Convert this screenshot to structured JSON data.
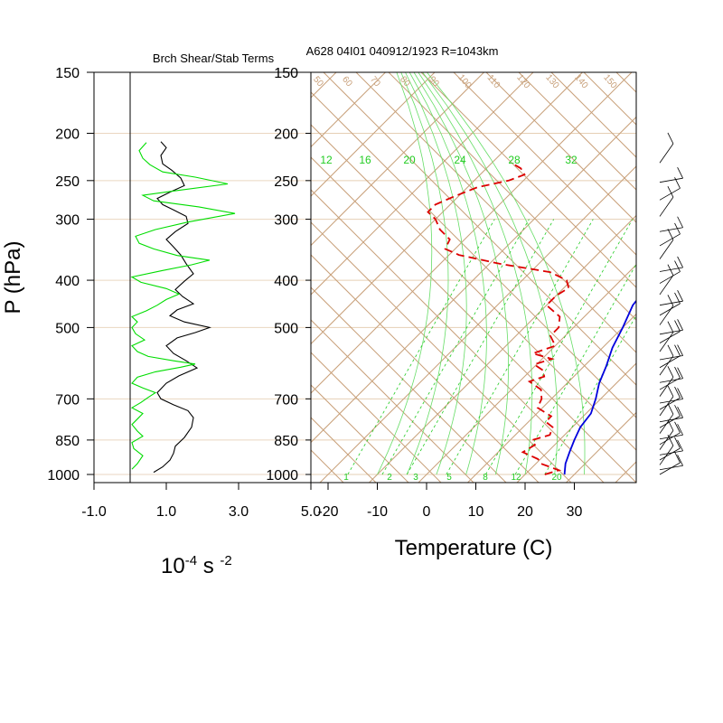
{
  "header": {
    "left_title": "Brch Shear/Stab Terms",
    "right_title": "A628 04I01 040912/1923 R=1043km"
  },
  "chart_data": [
    {
      "type": "line",
      "title": "Brch Shear/Stab Terms",
      "ylabel": "P (hPa)",
      "xlabel": "10-4 s -2",
      "xlabel_parts": {
        "base": "10",
        "exp1": "-4",
        "unit": " s ",
        "exp2": "-2"
      },
      "y_scale": "log",
      "ylim": [
        1000,
        150
      ],
      "xlim": [
        -1.0,
        5.0
      ],
      "x_ticks": [
        "-1.0",
        "1.0",
        "3.0",
        "5.0"
      ],
      "x_tick_values": [
        -1.0,
        1.0,
        3.0,
        5.0
      ],
      "y_ticks": [
        "150",
        "200",
        "250",
        "300",
        "400",
        "500",
        "700",
        "850",
        "1000"
      ],
      "y_tick_values": [
        150,
        200,
        250,
        300,
        400,
        500,
        700,
        850,
        1000
      ],
      "grid": true,
      "zero_line": 0.0,
      "series": [
        {
          "color": "#000000",
          "points": [
            [
              0.65,
              990
            ],
            [
              0.9,
              965
            ],
            [
              1.1,
              935
            ],
            [
              1.2,
              905
            ],
            [
              1.25,
              875
            ],
            [
              1.5,
              840
            ],
            [
              1.7,
              800
            ],
            [
              1.75,
              765
            ],
            [
              1.6,
              740
            ],
            [
              1.2,
              720
            ],
            [
              0.85,
              700
            ],
            [
              0.75,
              680
            ],
            [
              1.0,
              650
            ],
            [
              1.35,
              628
            ],
            [
              1.85,
              605
            ],
            [
              1.55,
              585
            ],
            [
              1.2,
              565
            ],
            [
              1.0,
              545
            ],
            [
              1.3,
              525
            ],
            [
              1.8,
              512
            ],
            [
              2.2,
              500
            ],
            [
              1.5,
              487
            ],
            [
              1.1,
              473
            ],
            [
              1.3,
              460
            ],
            [
              1.75,
              447
            ],
            [
              1.45,
              432
            ],
            [
              1.25,
              418
            ],
            [
              1.5,
              402
            ],
            [
              1.75,
              388
            ],
            [
              1.55,
              370
            ],
            [
              1.4,
              355
            ],
            [
              1.2,
              342
            ],
            [
              1.0,
              330
            ],
            [
              1.25,
              318
            ],
            [
              1.6,
              306
            ],
            [
              1.55,
              296
            ],
            [
              1.2,
              287
            ],
            [
              0.9,
              280
            ],
            [
              0.75,
              272
            ],
            [
              1.1,
              264
            ],
            [
              1.5,
              256
            ],
            [
              1.4,
              247
            ],
            [
              1.15,
              238
            ],
            [
              0.9,
              231
            ],
            [
              0.85,
              222
            ],
            [
              1.0,
              214
            ],
            [
              0.85,
              208
            ]
          ]
        },
        {
          "color": "#00dd00",
          "points": [
            [
              0.05,
              975
            ],
            [
              0.2,
              950
            ],
            [
              0.35,
              915
            ],
            [
              0.1,
              885
            ],
            [
              0.05,
              860
            ],
            [
              0.35,
              835
            ],
            [
              0.2,
              815
            ],
            [
              0.05,
              790
            ],
            [
              0.2,
              770
            ],
            [
              0.35,
              750
            ],
            [
              0.05,
              730
            ],
            [
              0.3,
              712
            ],
            [
              0.5,
              695
            ],
            [
              0.7,
              680
            ],
            [
              0.35,
              665
            ],
            [
              0.05,
              650
            ],
            [
              0.2,
              632
            ],
            [
              0.7,
              616
            ],
            [
              1.4,
              603
            ],
            [
              1.8,
              594
            ],
            [
              1.2,
              585
            ],
            [
              0.5,
              573
            ],
            [
              0.2,
              560
            ],
            [
              0.05,
              545
            ],
            [
              0.4,
              530
            ],
            [
              0.15,
              515
            ],
            [
              0.05,
              500
            ],
            [
              0.2,
              487
            ],
            [
              0.05,
              475
            ],
            [
              0.45,
              462
            ],
            [
              0.75,
              450
            ],
            [
              1.0,
              438
            ],
            [
              1.35,
              427
            ],
            [
              1.0,
              416
            ],
            [
              0.3,
              404
            ],
            [
              0.05,
              394
            ],
            [
              0.9,
              382
            ],
            [
              1.7,
              372
            ],
            [
              2.2,
              364
            ],
            [
              1.3,
              356
            ],
            [
              0.65,
              345
            ],
            [
              0.25,
              336
            ],
            [
              0.15,
              325
            ],
            [
              0.7,
              315
            ],
            [
              1.6,
              304
            ],
            [
              2.9,
              292
            ],
            [
              1.9,
              283
            ],
            [
              0.65,
              275
            ],
            [
              0.35,
              268
            ],
            [
              1.3,
              262
            ],
            [
              2.7,
              254
            ],
            [
              1.8,
              246
            ],
            [
              0.9,
              240
            ],
            [
              0.55,
              232
            ],
            [
              0.35,
              225
            ],
            [
              0.25,
              217
            ],
            [
              0.45,
              209
            ]
          ]
        }
      ]
    },
    {
      "type": "line",
      "subtype": "skew-t",
      "title": "A628 04I01 040912/1923 R=1043km",
      "xlabel": "Temperature (C)",
      "ylabel": "P (hPa)",
      "y_scale": "log",
      "ylim": [
        1000,
        150
      ],
      "xlim": [
        -23,
        42
      ],
      "x_ticks": [
        "-20",
        "-10",
        "0",
        "10",
        "20",
        "30"
      ],
      "x_tick_values": [
        -20,
        -10,
        0,
        10,
        20,
        30
      ],
      "y_ticks": [
        "150",
        "200",
        "250",
        "300",
        "400",
        "500",
        "700",
        "850",
        "1000"
      ],
      "y_tick_values": [
        150,
        200,
        250,
        300,
        400,
        500,
        700,
        850,
        1000
      ],
      "mixing_ratio_labels_top": [
        "12",
        "16",
        "20",
        "24",
        "28",
        "32"
      ],
      "mixing_ratio_labels_bottom": [
        "1",
        "2",
        "3",
        "5",
        "8",
        "12",
        "20"
      ],
      "theta_labels": [
        "50",
        "60",
        "70",
        "80",
        "90",
        "100",
        "110",
        "120",
        "130",
        "140",
        "150"
      ],
      "colors": {
        "temperature": "#0000dd",
        "dewpoint": "#dd0000",
        "isotherm_grid": "#c8a07a",
        "moist_adiabat": "#66dd66",
        "mixing_ratio": "#22cc22",
        "isobar": "#e6cfb4"
      },
      "series": [
        {
          "name": "",
          "color": "#0000dd",
          "style": "solid",
          "points": [
            [
              28,
              1000
            ],
            [
              26,
              950
            ],
            [
              24.5,
              900
            ],
            [
              23,
              850
            ],
            [
              21.6,
              800
            ],
            [
              21,
              750
            ],
            [
              19,
              700
            ],
            [
              16.5,
              650
            ],
            [
              14.5,
              600
            ],
            [
              12,
              550
            ],
            [
              10,
              500
            ],
            [
              7.5,
              450
            ],
            [
              6.5,
              400
            ],
            [
              4.0,
              350
            ],
            [
              1.5,
              300
            ],
            [
              -3.0,
              250
            ],
            [
              -10.0,
              200
            ]
          ]
        },
        {
          "name": "",
          "color": "#dd0000",
          "style": "dashed",
          "points": [
            [
              24,
              1000
            ],
            [
              26,
              980
            ],
            [
              21,
              950
            ],
            [
              19.5,
              930
            ],
            [
              15,
              900
            ],
            [
              16,
              870
            ],
            [
              14.5,
              850
            ],
            [
              17,
              830
            ],
            [
              16,
              800
            ],
            [
              13.5,
              780
            ],
            [
              13.5,
              760
            ],
            [
              9,
              730
            ],
            [
              8,
              700
            ],
            [
              6,
              670
            ],
            [
              2,
              645
            ],
            [
              4,
              630
            ],
            [
              2.5,
              612
            ],
            [
              -0.5,
              595
            ],
            [
              2,
              580
            ],
            [
              -3,
              565
            ],
            [
              0,
              545
            ],
            [
              -3,
              520
            ],
            [
              -3,
              500
            ],
            [
              -5,
              475
            ],
            [
              -10,
              450
            ],
            [
              -10,
              430
            ],
            [
              -9,
              415
            ],
            [
              -11,
              400
            ],
            [
              -16,
              385
            ],
            [
              -28,
              370
            ],
            [
              -38,
              355
            ],
            [
              -42,
              345
            ],
            [
              -43,
              330
            ],
            [
              -47,
              315
            ],
            [
              -50,
              300
            ],
            [
              -53,
              290
            ],
            [
              -53,
              280
            ],
            [
              -51,
              270
            ],
            [
              -48,
              258
            ],
            [
              -43,
              250
            ],
            [
              -41,
              243
            ],
            [
              -43,
              236
            ],
            [
              -46,
              230
            ]
          ]
        }
      ]
    },
    {
      "type": "barbs",
      "description_free": true,
      "color": "#000000",
      "ylim": [
        1000,
        150
      ]
    }
  ]
}
